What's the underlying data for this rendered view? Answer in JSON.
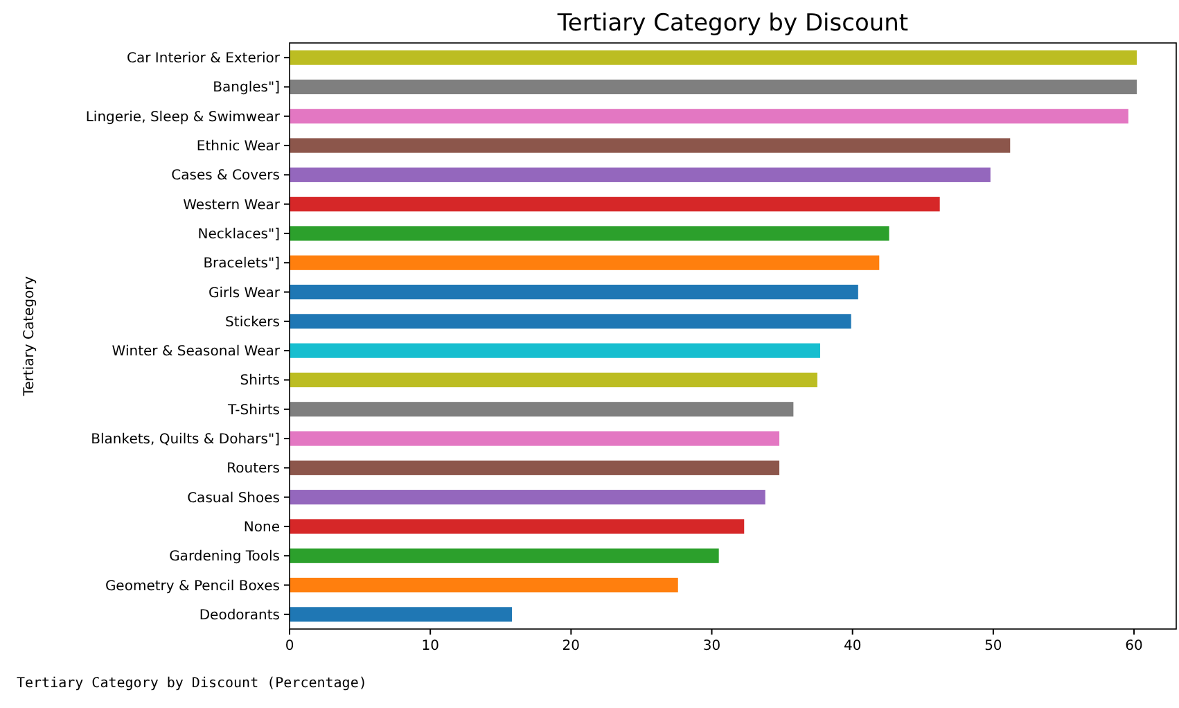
{
  "chart_data": {
    "type": "bar",
    "orientation": "horizontal",
    "title": "Tertiary Category by Discount",
    "ylabel": "Tertiary Category",
    "annotations": [
      "Tertiary Category by Discount (Percentage)"
    ],
    "categories": [
      "Car Interior & Exterior",
      "Bangles\"]",
      "Lingerie, Sleep & Swimwear",
      "Ethnic Wear",
      "Cases & Covers",
      "Western Wear",
      "Necklaces\"]",
      "Bracelets\"]",
      "Girls Wear",
      "Stickers",
      "Winter & Seasonal Wear",
      "Shirts",
      "T-Shirts",
      "Blankets, Quilts & Dohars\"]",
      "Routers",
      "Casual Shoes",
      "None",
      "Gardening Tools",
      "Geometry & Pencil Boxes",
      "Deodorants"
    ],
    "values": [
      60.2,
      60.2,
      59.6,
      51.2,
      49.8,
      46.2,
      42.6,
      41.9,
      40.4,
      39.9,
      37.7,
      37.5,
      35.8,
      34.8,
      34.8,
      33.8,
      32.3,
      30.5,
      27.6,
      15.8
    ],
    "colors": [
      "#bcbd22",
      "#7f7f7f",
      "#e377c2",
      "#8c564b",
      "#9467bd",
      "#d62728",
      "#2ca02c",
      "#ff7f0e",
      "#1f77b4",
      "#1f77b4",
      "#17becf",
      "#bcbd22",
      "#7f7f7f",
      "#e377c2",
      "#8c564b",
      "#9467bd",
      "#d62728",
      "#2ca02c",
      "#ff7f0e",
      "#1f77b4"
    ],
    "xlim": [
      0,
      63
    ],
    "xticks": [
      0,
      10,
      20,
      30,
      40,
      50,
      60
    ],
    "grid": false
  }
}
